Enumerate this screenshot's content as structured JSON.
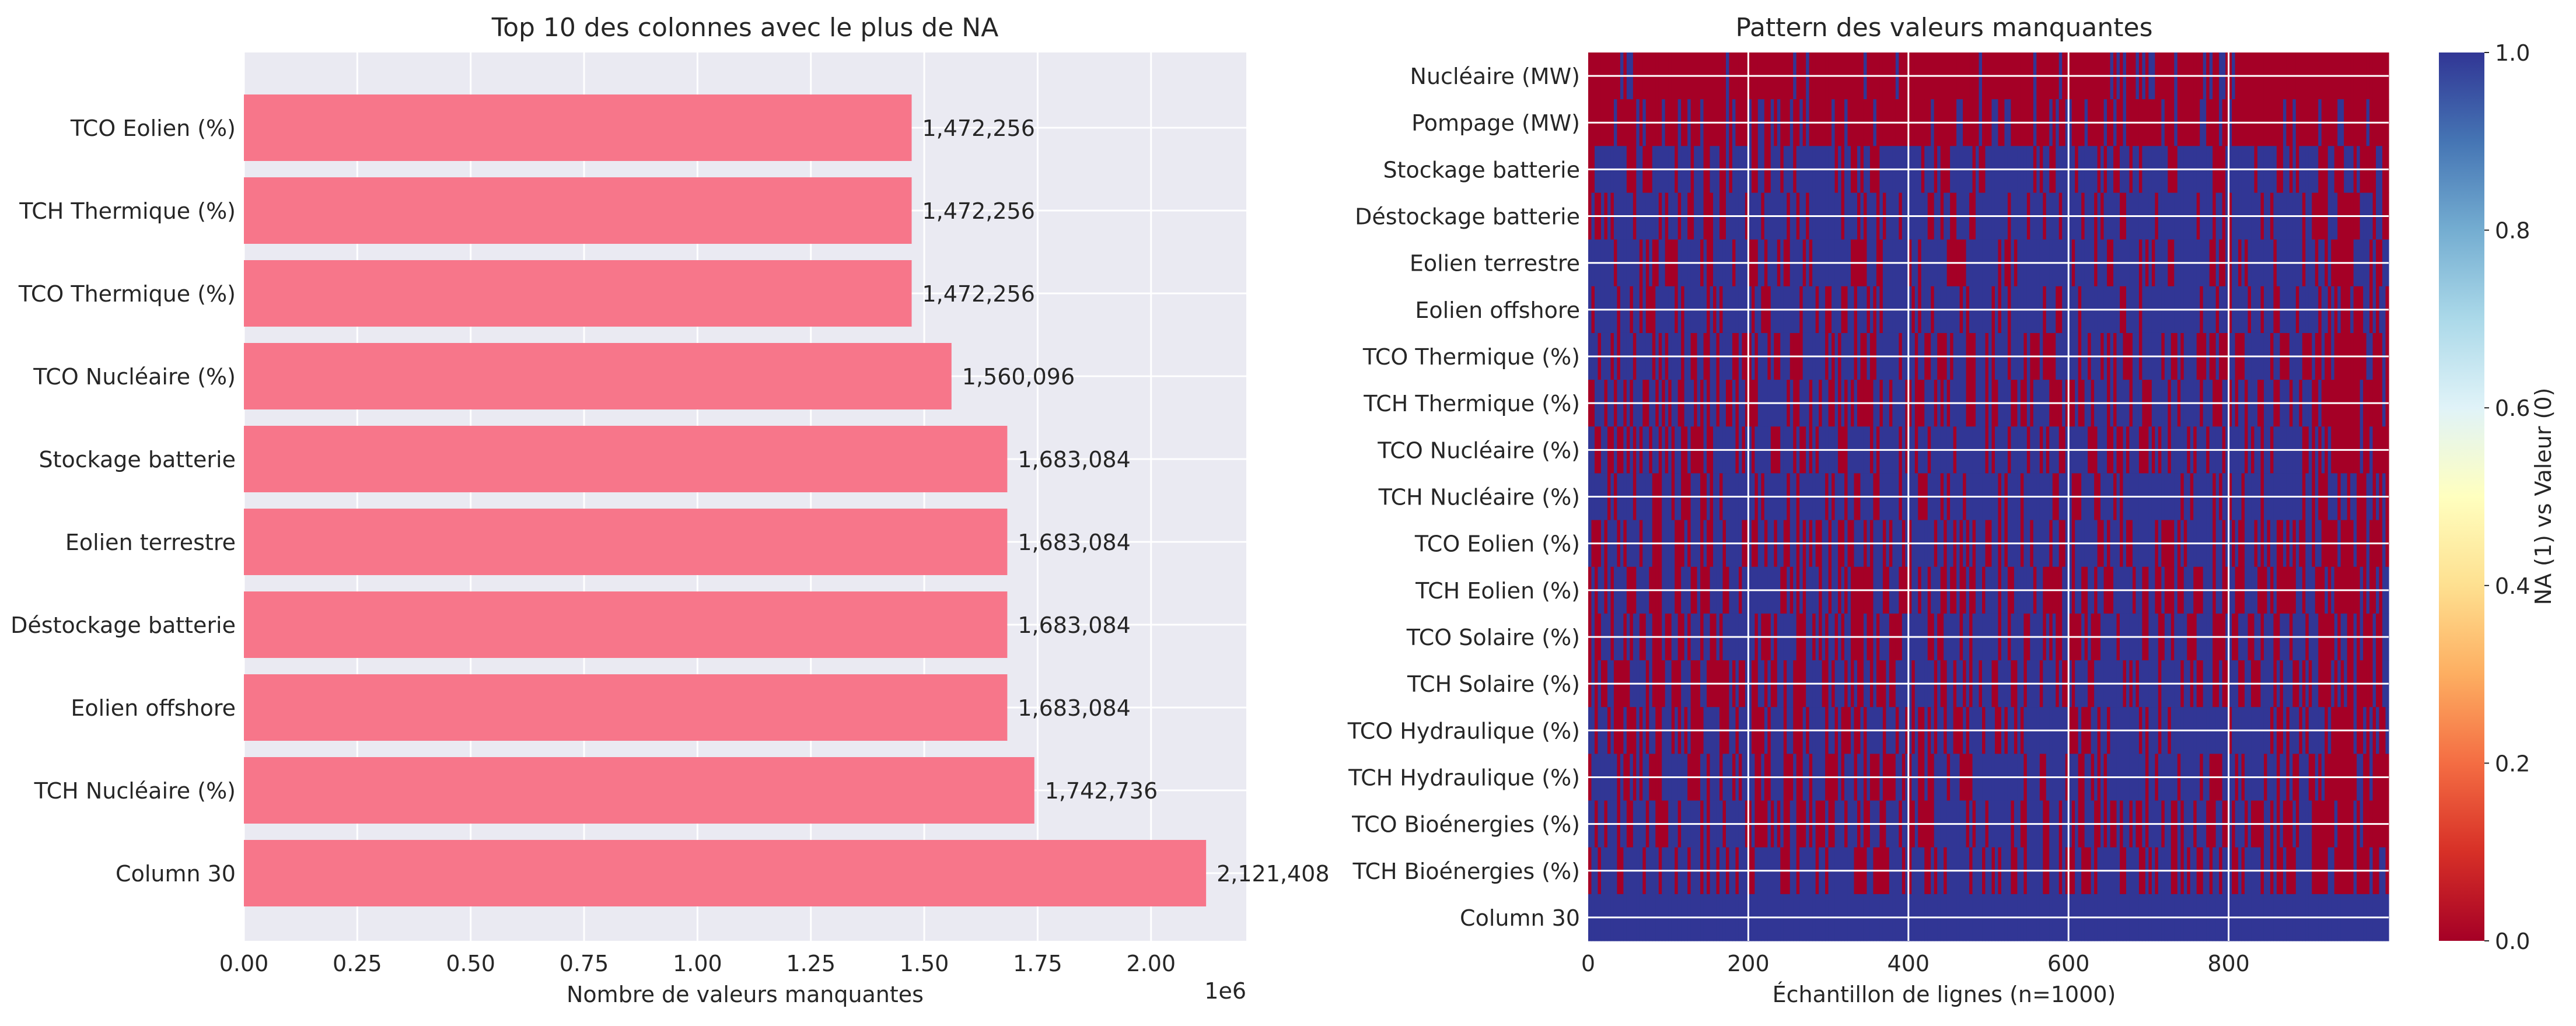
{
  "chart_data": [
    {
      "type": "bar",
      "orientation": "horizontal",
      "title": "Top 10 des colonnes avec le plus de NA",
      "xlabel": "Nombre de valeurs manquantes",
      "ylabel": "",
      "x_offset_label": "1e6",
      "xlim": [
        0,
        2210000
      ],
      "xticks": [
        0,
        250000,
        500000,
        750000,
        1000000,
        1250000,
        1500000,
        1750000,
        2000000
      ],
      "xtick_labels": [
        "0.00",
        "0.25",
        "0.50",
        "0.75",
        "1.00",
        "1.25",
        "1.50",
        "1.75",
        "2.00"
      ],
      "categories": [
        "TCO Eolien (%)",
        "TCH Thermique (%)",
        "TCO Thermique (%)",
        "TCO Nucléaire (%)",
        "Stockage batterie",
        "Eolien terrestre",
        "Déstockage batterie",
        "Eolien offshore",
        "TCH Nucléaire (%)",
        "Column 30"
      ],
      "values": [
        1472256,
        1472256,
        1472256,
        1560096,
        1683084,
        1683084,
        1683084,
        1683084,
        1742736,
        2121408
      ],
      "value_labels": [
        "1,472,256",
        "1,472,256",
        "1,472,256",
        "1,560,096",
        "1,683,084",
        "1,683,084",
        "1,683,084",
        "1,683,084",
        "1,742,736",
        "2,121,408"
      ],
      "bar_color": "#f7768a",
      "background": "#eaeaf2",
      "grid": true
    },
    {
      "type": "heatmap",
      "title": "Pattern des valeurs manquantes",
      "xlabel": "Échantillon de lignes (n=1000)",
      "ylabel": "",
      "xlim": [
        0,
        1000
      ],
      "xticks": [
        0,
        200,
        400,
        600,
        800
      ],
      "xtick_labels": [
        "0",
        "200",
        "400",
        "600",
        "800"
      ],
      "rows": [
        "Nucléaire (MW)",
        "Pompage (MW)",
        "Stockage batterie",
        "Déstockage batterie",
        "Eolien terrestre",
        "Eolien offshore",
        "TCO Thermique (%)",
        "TCH Thermique (%)",
        "TCO Nucléaire (%)",
        "TCH Nucléaire (%)",
        "TCO Eolien (%)",
        "TCH Eolien (%)",
        "TCO Solaire (%)",
        "TCH Solaire (%)",
        "TCO Hydraulique (%)",
        "TCH Hydraulique (%)",
        "TCO Bioénergies (%)",
        "TCH Bioénergies (%)",
        "Column 30"
      ],
      "row_na_share": [
        0.1,
        0.2,
        0.75,
        0.75,
        0.75,
        0.75,
        0.6,
        0.6,
        0.65,
        0.78,
        0.6,
        0.6,
        0.6,
        0.6,
        0.6,
        0.6,
        0.6,
        0.6,
        1.0
      ],
      "colormap": "RdYlBu",
      "colorbar": {
        "label": "NA (1) vs Valeur (0)",
        "range": [
          0,
          1
        ],
        "ticks": [
          "0.0",
          "0.2",
          "0.4",
          "0.6",
          "0.8",
          "1.0"
        ]
      }
    }
  ]
}
